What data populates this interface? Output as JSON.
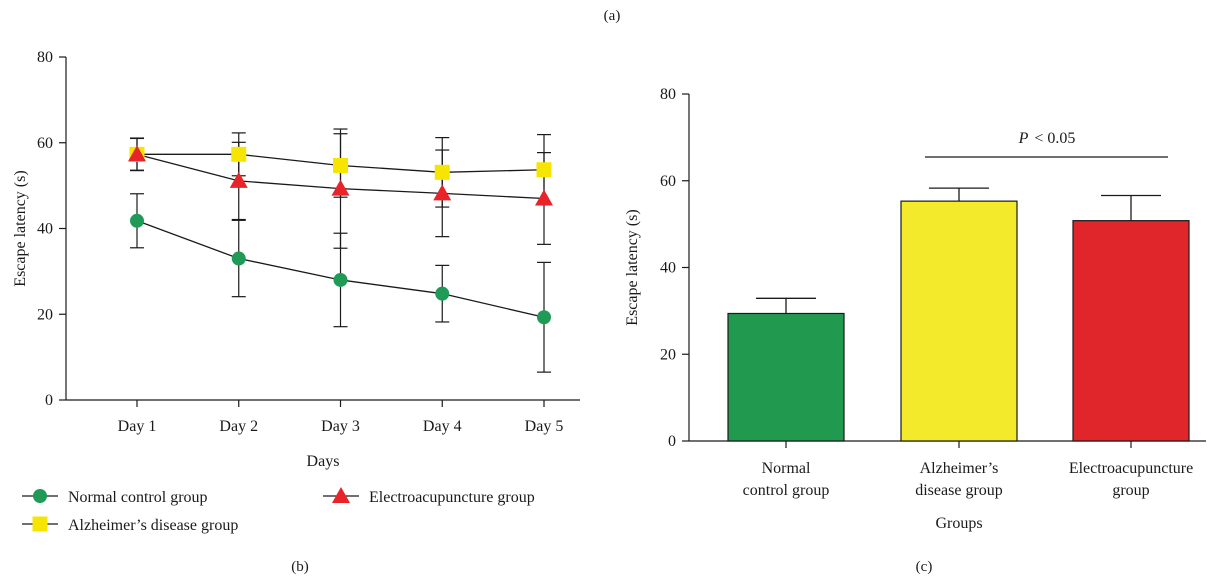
{
  "panel_labels": {
    "a": "(a)",
    "b": "(b)",
    "c": "(c)"
  },
  "chart_data": [
    {
      "panel": "(b)",
      "type": "line",
      "xlabel": "Days",
      "ylabel": "Escape latency (s)",
      "categories": [
        "Day 1",
        "Day 2",
        "Day 3",
        "Day 4",
        "Day 5"
      ],
      "ylim": [
        0,
        80
      ],
      "yticks": [
        "0",
        "20",
        "40",
        "60",
        "80"
      ],
      "grid": false,
      "legend_position": "bottom",
      "series": [
        {
          "name": "Normal control group",
          "marker": "circle",
          "color": "#1f9a57",
          "values": [
            41.8,
            33.0,
            28.0,
            24.8,
            19.3
          ],
          "errors": [
            6.3,
            8.9,
            10.9,
            6.6,
            12.8
          ]
        },
        {
          "name": "Alzheimer’s disease group",
          "marker": "square",
          "color": "#f6e500",
          "values": [
            57.3,
            57.3,
            54.7,
            53.1,
            53.7
          ],
          "errors": [
            3.7,
            5.0,
            7.4,
            8.1,
            8.2
          ]
        },
        {
          "name": "Electroacupuncture group",
          "marker": "triangle",
          "color": "#e8242a",
          "values": [
            57.3,
            51.1,
            49.3,
            48.2,
            47.0
          ],
          "errors": [
            3.8,
            9.0,
            13.9,
            10.1,
            10.7
          ]
        }
      ]
    },
    {
      "panel": "(c)",
      "type": "bar",
      "xlabel": "Groups",
      "ylabel": "Escape latency (s)",
      "categories": [
        [
          "Normal",
          "control group"
        ],
        [
          "Alzheimer’s",
          "disease group"
        ],
        [
          "Electroacupuncture",
          "group"
        ]
      ],
      "values": [
        29.4,
        55.3,
        50.8
      ],
      "errors": [
        3.5,
        3.0,
        5.8
      ],
      "colors": [
        "#219a4f",
        "#f2ea2a",
        "#e1262b"
      ],
      "ylim": [
        0,
        80
      ],
      "yticks": [
        "0",
        "20",
        "40",
        "60",
        "80"
      ],
      "annotation": {
        "prefix": "P",
        "text": "< 0.05",
        "from": 1,
        "to": 2
      }
    }
  ]
}
